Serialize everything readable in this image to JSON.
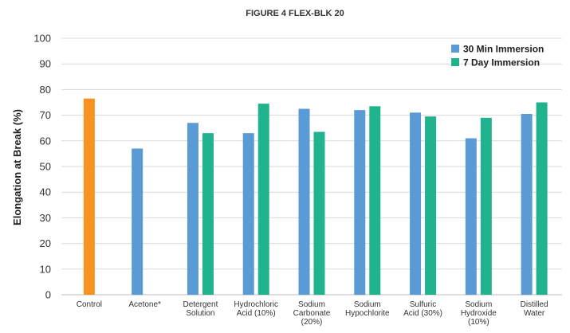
{
  "chart_data": {
    "type": "bar",
    "title": "FIGURE 4 FLEX-BLK 20",
    "xlabel": "",
    "ylabel": "Elongation at Break (%)",
    "ylim": [
      0,
      100
    ],
    "yticks": [
      0,
      10,
      20,
      30,
      40,
      50,
      60,
      70,
      80,
      90,
      100
    ],
    "grid": true,
    "legend_position": "top-right",
    "categories": [
      [
        "Control"
      ],
      [
        "Acetone*"
      ],
      [
        "Detergent",
        "Solution"
      ],
      [
        "Hydrochloric",
        "Acid (10%)"
      ],
      [
        "Sodium",
        "Carbonate",
        "(20%)"
      ],
      [
        "Sodium",
        "Hypochlorite"
      ],
      [
        "Sulfuric",
        "Acid (30%)"
      ],
      [
        "Sodium",
        "Hydroxide",
        "(10%)"
      ],
      [
        "Distilled",
        "Water"
      ]
    ],
    "control": {
      "value": 76.5,
      "color": "#f7931e"
    },
    "series": [
      {
        "name": "30 Min Immersion",
        "color": "#5b9bd5",
        "values": [
          null,
          57,
          67,
          63,
          72.5,
          72,
          71,
          61,
          70.5
        ]
      },
      {
        "name": "7 Day Immersion",
        "color": "#21b38e",
        "values": [
          null,
          null,
          63,
          74.5,
          63.5,
          73.5,
          69.5,
          69,
          75
        ]
      }
    ]
  }
}
